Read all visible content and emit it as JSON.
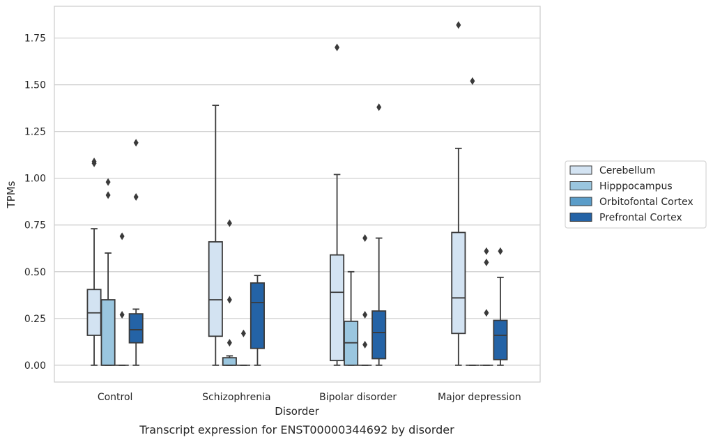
{
  "caption": "Transcript expression for ENST00000344692 by disorder",
  "chart_data": {
    "type": "box",
    "xlabel": "Disorder",
    "ylabel": "TPMs",
    "ylim": [
      -0.09,
      1.92
    ],
    "yticks": [
      "0.00",
      "0.25",
      "0.50",
      "0.75",
      "1.00",
      "1.25",
      "1.50",
      "1.75"
    ],
    "ytick_values": [
      0,
      0.25,
      0.5,
      0.75,
      1.0,
      1.25,
      1.5,
      1.75
    ],
    "grid": "horizontal",
    "legend_position": "right",
    "categories": [
      "Control",
      "Schizophrenia",
      "Bipolar disorder",
      "Major depression"
    ],
    "series": [
      {
        "name": "Cerebellum",
        "color": "#d3e3f2",
        "boxes": [
          {
            "whislo": 0.0,
            "q1": 0.16,
            "med": 0.28,
            "q3": 0.405,
            "whishi": 0.73,
            "fliers": [
              1.08,
              1.09
            ]
          },
          {
            "whislo": 0.0,
            "q1": 0.155,
            "med": 0.35,
            "q3": 0.66,
            "whishi": 1.39,
            "fliers": []
          },
          {
            "whislo": 0.0,
            "q1": 0.025,
            "med": 0.39,
            "q3": 0.59,
            "whishi": 1.02,
            "fliers": [
              1.7
            ]
          },
          {
            "whislo": 0.0,
            "q1": 0.17,
            "med": 0.36,
            "q3": 0.71,
            "whishi": 1.16,
            "fliers": [
              1.82
            ]
          }
        ]
      },
      {
        "name": "Hipppocampus",
        "color": "#9ac6df",
        "boxes": [
          {
            "whislo": 0.0,
            "q1": 0.0,
            "med": 0.0,
            "q3": 0.35,
            "whishi": 0.6,
            "fliers": [
              0.91,
              0.98
            ]
          },
          {
            "whislo": 0.0,
            "q1": 0.0,
            "med": 0.0,
            "q3": 0.04,
            "whishi": 0.05,
            "fliers": [
              0.12,
              0.35,
              0.76
            ]
          },
          {
            "whislo": 0.0,
            "q1": 0.0,
            "med": 0.12,
            "q3": 0.235,
            "whishi": 0.5,
            "fliers": []
          },
          {
            "whislo": 0.0,
            "q1": 0.0,
            "med": 0.0,
            "q3": 0.0,
            "whishi": 0.0,
            "fliers": [
              1.52
            ]
          }
        ]
      },
      {
        "name": "Orbitofontal Cortex",
        "color": "#5b9dc9",
        "boxes": [
          {
            "whislo": 0.0,
            "q1": 0.0,
            "med": 0.0,
            "q3": 0.0,
            "whishi": 0.0,
            "fliers": [
              0.27,
              0.69
            ]
          },
          {
            "whislo": 0.0,
            "q1": 0.0,
            "med": 0.0,
            "q3": 0.0,
            "whishi": 0.0,
            "fliers": [
              0.17
            ]
          },
          {
            "whislo": 0.0,
            "q1": 0.0,
            "med": 0.0,
            "q3": 0.0,
            "whishi": 0.0,
            "fliers": [
              0.11,
              0.27,
              0.68
            ]
          },
          {
            "whislo": 0.0,
            "q1": 0.0,
            "med": 0.0,
            "q3": 0.0,
            "whishi": 0.0,
            "fliers": [
              0.28,
              0.55,
              0.61
            ]
          }
        ]
      },
      {
        "name": "Prefrontal Cortex",
        "color": "#2463a6",
        "boxes": [
          {
            "whislo": 0.0,
            "q1": 0.12,
            "med": 0.19,
            "q3": 0.275,
            "whishi": 0.3,
            "fliers": [
              0.9,
              1.19
            ]
          },
          {
            "whislo": 0.0,
            "q1": 0.09,
            "med": 0.335,
            "q3": 0.44,
            "whishi": 0.48,
            "fliers": []
          },
          {
            "whislo": 0.0,
            "q1": 0.035,
            "med": 0.175,
            "q3": 0.29,
            "whishi": 0.68,
            "fliers": [
              1.38
            ]
          },
          {
            "whislo": 0.0,
            "q1": 0.03,
            "med": 0.16,
            "q3": 0.24,
            "whishi": 0.47,
            "fliers": [
              0.61
            ]
          }
        ]
      }
    ]
  }
}
